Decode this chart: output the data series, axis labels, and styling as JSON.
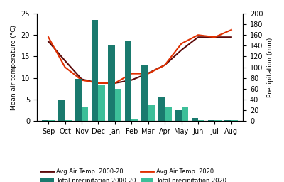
{
  "months": [
    "Sep",
    "Oct",
    "Nov",
    "Dec",
    "Jan",
    "Feb",
    "Mar",
    "Apr",
    "May",
    "Jun",
    "Jul",
    "Aug"
  ],
  "avg_temp_2000_20": [
    18.5,
    14.0,
    9.7,
    8.8,
    8.8,
    9.5,
    11.1,
    13.0,
    16.5,
    19.5,
    19.5,
    19.5
  ],
  "avg_temp_2020": [
    19.5,
    12.5,
    9.5,
    8.8,
    8.8,
    11.0,
    11.0,
    13.0,
    18.0,
    20.0,
    19.5,
    21.2
  ],
  "precip_2000_20": [
    2.0,
    38.0,
    78.0,
    188.0,
    140.0,
    148.0,
    103.0,
    44.0,
    20.0,
    5.0,
    1.0,
    1.0
  ],
  "precip_2020": [
    2.0,
    1.5,
    26.0,
    68.0,
    60.0,
    3.0,
    30.0,
    25.0,
    26.0,
    1.0,
    1.0,
    2.0
  ],
  "color_bar_2000_20": "#1a7a6e",
  "color_bar_2020": "#3dbf99",
  "color_line_2000_20": "#5c0a0a",
  "color_line_2020": "#e03000",
  "ylabel_left": "Mean air temperature (°C)",
  "ylabel_right": "Precipitation (mm)",
  "ylim_left": [
    0,
    25
  ],
  "ylim_right": [
    0,
    200
  ],
  "yticks_left": [
    0,
    5,
    10,
    15,
    20,
    25
  ],
  "yticks_right": [
    0,
    20,
    40,
    60,
    80,
    100,
    120,
    140,
    160,
    180,
    200
  ],
  "bg_color": "#ffffff",
  "legend_labels": [
    "Avg Air Temp  2000-20",
    "Total precipitation 2000-20",
    "Avg Air Temp  2020",
    "Total precipitation 2020"
  ]
}
